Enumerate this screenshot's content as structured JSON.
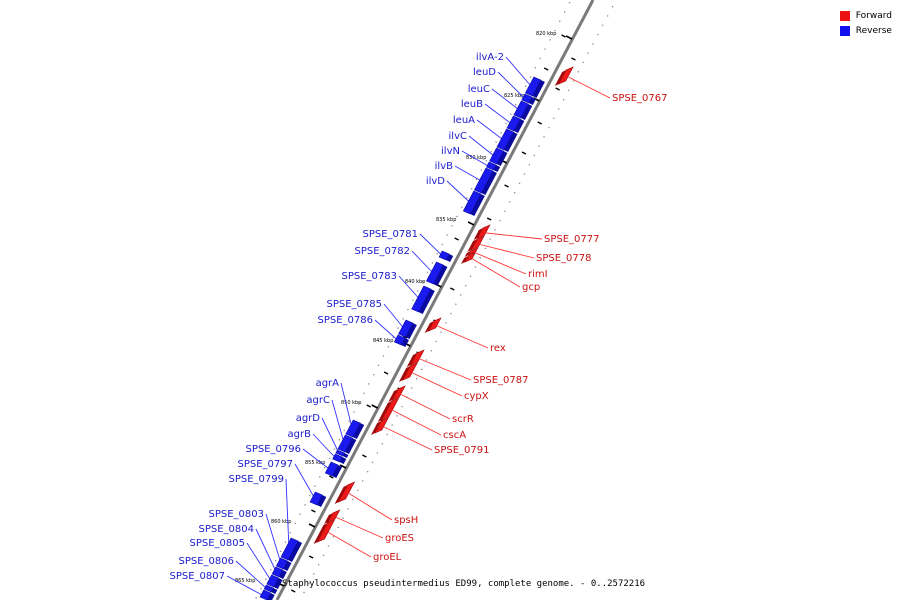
{
  "legend": {
    "items": [
      {
        "label": "Forward",
        "color": "#ee1111"
      },
      {
        "label": "Reverse",
        "color": "#1111ee"
      }
    ]
  },
  "caption": "Staphylococcus pseudintermedius ED99, complete genome. - 0..2572216",
  "axis": {
    "ticks": [
      "820 kbp",
      "825 kbp",
      "830 kbp",
      "835 kbp",
      "840 kbp",
      "845 kbp",
      "850 kbp",
      "855 kbp",
      "860 kbp",
      "865 kbp"
    ]
  },
  "genes": {
    "reverse": [
      "ilvA-2",
      "leuD",
      "leuC",
      "leuB",
      "leuA",
      "ilvC",
      "ilvN",
      "ilvB",
      "ilvD",
      "SPSE_0781",
      "SPSE_0782",
      "SPSE_0783",
      "SPSE_0785",
      "SPSE_0786",
      "agrA",
      "agrC",
      "agrD",
      "agrB",
      "SPSE_0796",
      "SPSE_0797",
      "SPSE_0799",
      "SPSE_0803",
      "SPSE_0804",
      "SPSE_0805",
      "SPSE_0806",
      "SPSE_0807"
    ],
    "forward": [
      "SPSE_0767",
      "SPSE_0777",
      "SPSE_0778",
      "rimI",
      "gcp",
      "rex",
      "SPSE_0787",
      "cypX",
      "scrR",
      "cscA",
      "SPSE_0791",
      "spsH",
      "groES",
      "groEL"
    ]
  }
}
